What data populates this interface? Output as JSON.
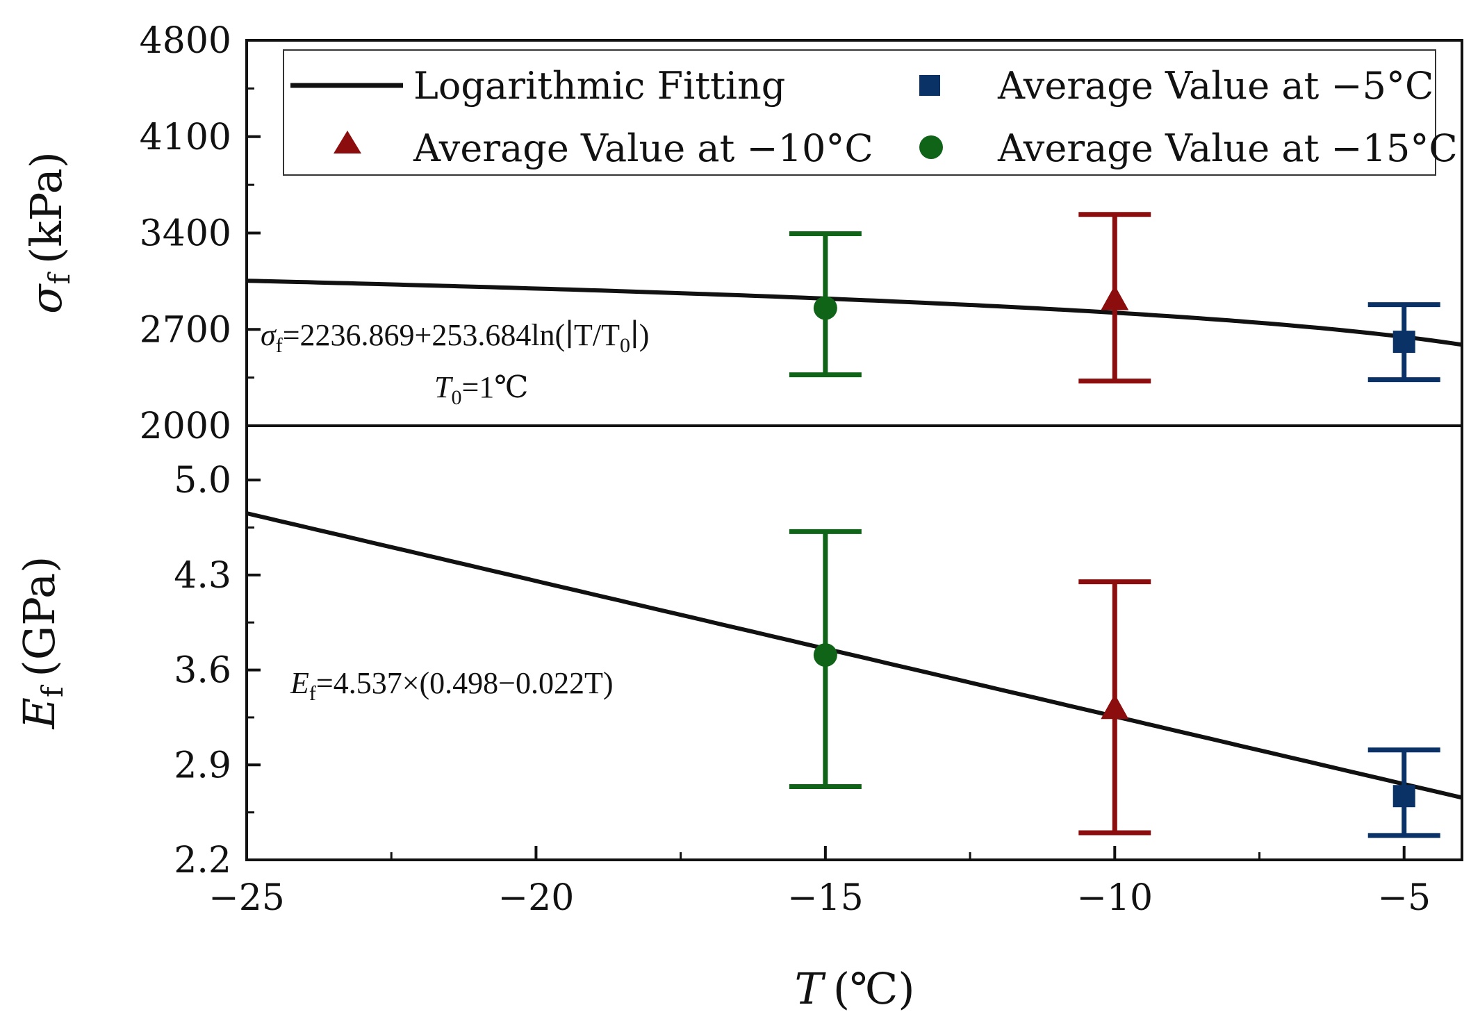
{
  "chart_data": [
    {
      "type": "scatter",
      "panel": "top",
      "ylabel": "σ_f (kPa)",
      "ylabel_main": "σ",
      "ylabel_sub": "f",
      "ylabel_unit": "(kPa)",
      "ylim": [
        2000,
        4800
      ],
      "yticks": [
        "4800",
        "4100",
        "3400",
        "2700",
        "2000"
      ],
      "ytick_values": [
        4800,
        4100,
        3400,
        2700,
        2000
      ],
      "xlim": [
        -25,
        -4
      ],
      "fit": {
        "type": "log",
        "a": 2236.869,
        "b": 253.684,
        "T0": 1
      },
      "equation_main": "σ",
      "equation_sub": "f",
      "equation_rest": "=2236.869+253.684ln(∣T/T",
      "equation_sub2": "0",
      "equation_end": "∣)",
      "t0_label_main": "T",
      "t0_label_sub": "0",
      "t0_label_rest": "=1℃",
      "series": [
        {
          "name": "Average Value at −5°C",
          "marker": "square",
          "color": "#0b3267",
          "x": -5,
          "y": 2610,
          "err_low": 2335,
          "err_high": 2880
        },
        {
          "name": "Average Value at −10°C",
          "marker": "triangle",
          "color": "#8b0d0d",
          "x": -10,
          "y": 2910,
          "err_low": 2325,
          "err_high": 3535
        },
        {
          "name": "Average Value at −15°C",
          "marker": "circle",
          "color": "#0f6418",
          "x": -15,
          "y": 2855,
          "err_low": 2370,
          "err_high": 3395
        }
      ]
    },
    {
      "type": "scatter",
      "panel": "bottom",
      "ylabel": "E_f (GPa)",
      "ylabel_main": "E",
      "ylabel_sub": "f",
      "ylabel_unit": "(GPa)",
      "ylim": [
        2.2,
        5.4
      ],
      "yticks": [
        "5.0",
        "4.3",
        "3.6",
        "2.9",
        "2.2"
      ],
      "ytick_values": [
        5.0,
        4.3,
        3.6,
        2.9,
        2.2
      ],
      "xlim": [
        -25,
        -4
      ],
      "xlabel": "T (℃)",
      "xlabel_main": "T",
      "xlabel_unit": "(℃)",
      "xticks": [
        "−25",
        "−20",
        "−15",
        "−10",
        "−5"
      ],
      "xtick_values": [
        -25,
        -20,
        -15,
        -10,
        -5
      ],
      "fit": {
        "type": "linear",
        "k": 4.537,
        "c0": 0.498,
        "c1": -0.022
      },
      "equation_main": "E",
      "equation_sub": "f",
      "equation_rest": "=4.537×(0.498−0.022T)",
      "series": [
        {
          "name": "Average Value at −5°C",
          "marker": "square",
          "color": "#0b3267",
          "x": -5,
          "y": 2.67,
          "err_low": 2.38,
          "err_high": 3.01
        },
        {
          "name": "Average Value at −10°C",
          "marker": "triangle",
          "color": "#8b0d0d",
          "x": -10,
          "y": 3.31,
          "err_low": 2.4,
          "err_high": 4.25
        },
        {
          "name": "Average Value at −15°C",
          "marker": "circle",
          "color": "#0f6418",
          "x": -15,
          "y": 3.71,
          "err_low": 2.74,
          "err_high": 4.62
        }
      ]
    }
  ],
  "legend": {
    "fit_label": "Logarithmic Fitting",
    "items": [
      {
        "label": "Average Value at −5°C",
        "marker": "square",
        "color": "#0b3267"
      },
      {
        "label": "Average Value at −10°C",
        "marker": "triangle",
        "color": "#8b0d0d"
      },
      {
        "label": "Average Value at −15°C",
        "marker": "circle",
        "color": "#0f6418"
      }
    ]
  }
}
